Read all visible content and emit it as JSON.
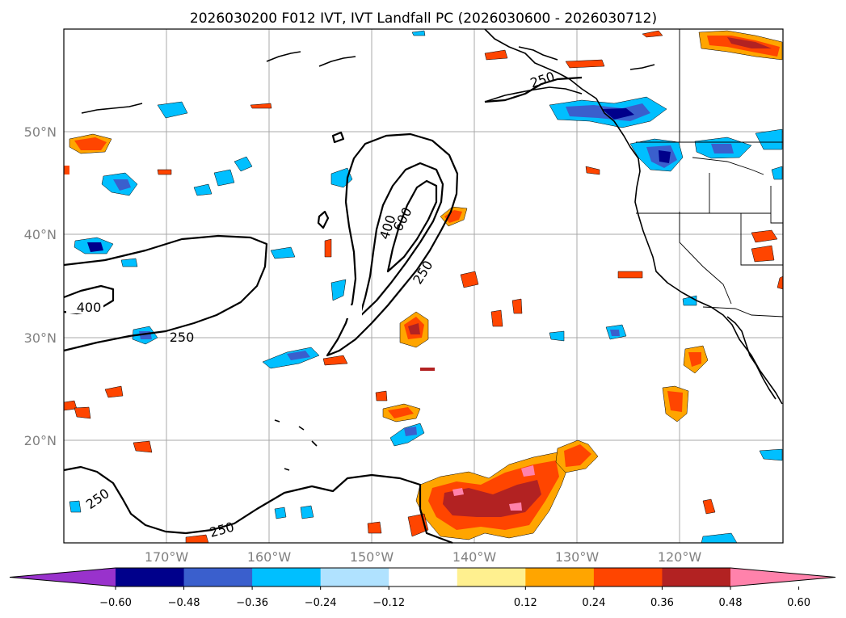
{
  "title": "2026030200 F012 IVT, IVT Landfall PC (2026030600 - 2026030712)",
  "map": {
    "lon_range": [
      -180,
      -110
    ],
    "lat_range": [
      10,
      60
    ],
    "lat_labels": [
      "20°N",
      "30°N",
      "40°N",
      "50°N"
    ],
    "lon_labels": [
      "170°W",
      "160°W",
      "150°W",
      "140°W",
      "130°W",
      "120°W"
    ],
    "contour_labels": [
      "250",
      "400",
      "600",
      "400",
      "250",
      "250",
      "250",
      "250",
      "250"
    ]
  },
  "colorbar": {
    "ticks": [
      "−0.60",
      "−0.48",
      "−0.36",
      "−0.24",
      "−0.12",
      "0.12",
      "0.24",
      "0.36",
      "0.48",
      "0.60"
    ],
    "colors": [
      "#9932cc",
      "#00008b",
      "#3a5fcd",
      "#00bfff",
      "#b0e2ff",
      "#ffffff",
      "#fff08f",
      "#ffa500",
      "#ff4500",
      "#b22222",
      "#ff82ab"
    ]
  }
}
